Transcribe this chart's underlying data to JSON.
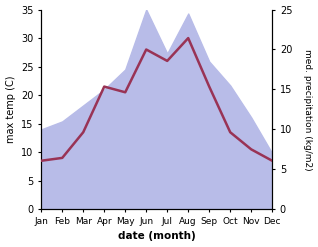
{
  "months": [
    "Jan",
    "Feb",
    "Mar",
    "Apr",
    "May",
    "Jun",
    "Jul",
    "Aug",
    "Sep",
    "Oct",
    "Nov",
    "Dec"
  ],
  "temp": [
    8.5,
    9.0,
    13.5,
    21.5,
    20.5,
    28.0,
    26.0,
    30.0,
    21.5,
    13.5,
    10.5,
    8.5
  ],
  "precip": [
    10.0,
    11.0,
    13.0,
    15.0,
    17.5,
    25.0,
    19.5,
    24.5,
    18.5,
    15.5,
    11.5,
    7.0
  ],
  "temp_color": "#993355",
  "precip_fill_color": "#b8bce8",
  "temp_ylim": [
    0,
    35
  ],
  "precip_ylim": [
    0,
    25
  ],
  "temp_yticks": [
    0,
    5,
    10,
    15,
    20,
    25,
    30,
    35
  ],
  "precip_yticks": [
    0,
    5,
    10,
    15,
    20,
    25
  ],
  "ylabel_left": "max temp (C)",
  "ylabel_right": "med. precipitation (kg/m2)",
  "xlabel": "date (month)",
  "bg_color": "#ffffff",
  "temp_linewidth": 1.8
}
